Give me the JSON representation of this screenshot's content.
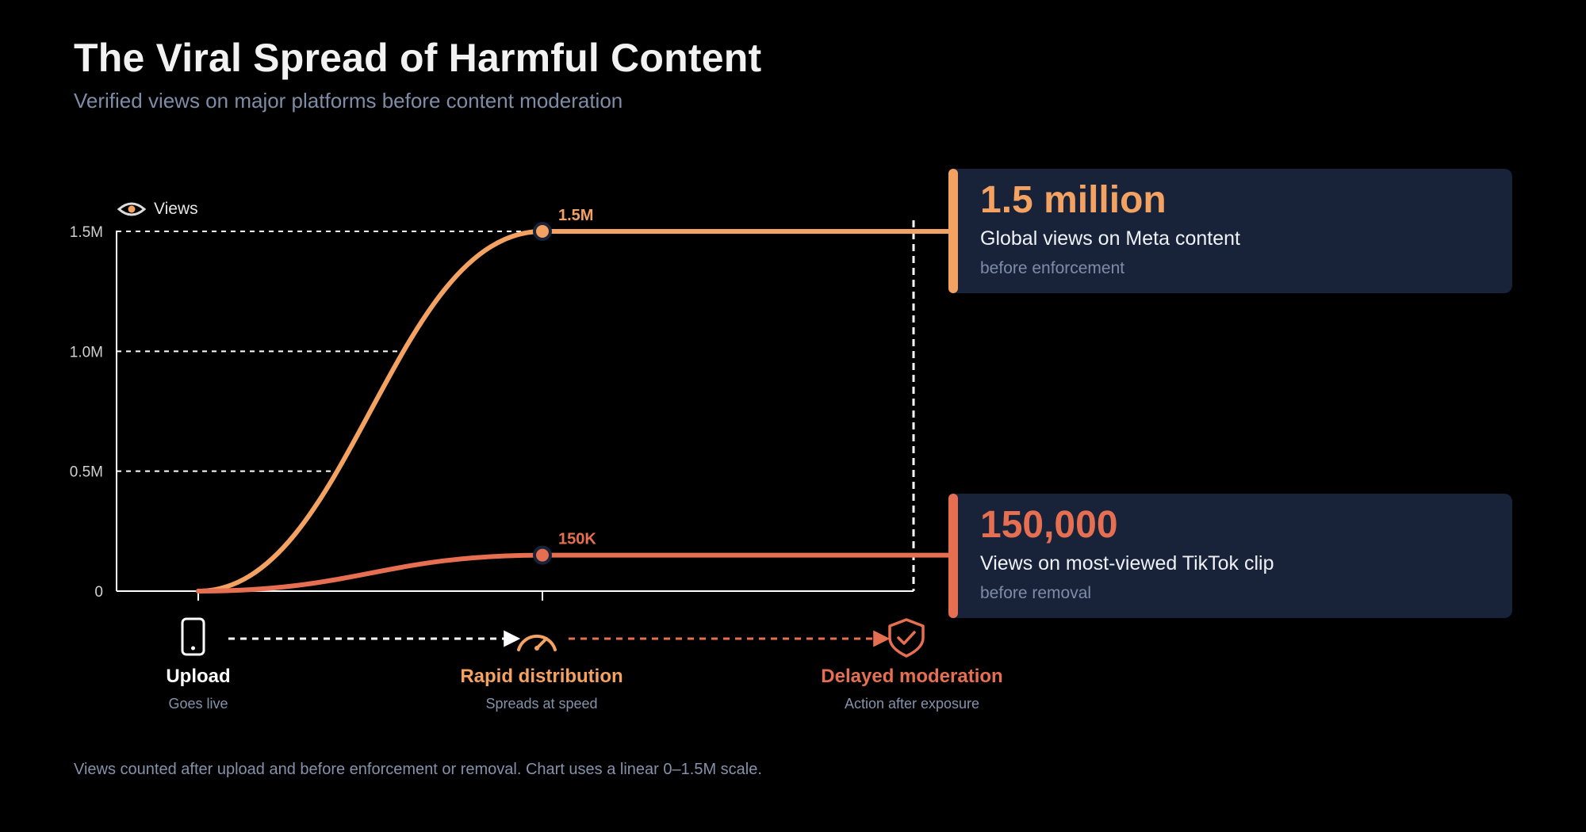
{
  "header": {
    "title": "The Viral Spread of Harmful Content",
    "subtitle": "Verified views on major platforms before content moderation"
  },
  "footnote": "Views counted after upload and before enforcement or removal. Chart uses a linear 0–1.5M scale.",
  "colors": {
    "meta": "#f4a261",
    "tiktok": "#e76f51",
    "card_bg": "#18233a",
    "muted": "#7f8ca5"
  },
  "chart_data": {
    "type": "line",
    "ylabel": "Views",
    "ylabel_icon": "eye-icon",
    "ylim": [
      0,
      1500000
    ],
    "yticks": [
      {
        "value": 0,
        "label": "0"
      },
      {
        "value": 500000,
        "label": "0.5M"
      },
      {
        "value": 1000000,
        "label": "1.0M"
      },
      {
        "value": 1500000,
        "label": "1.5M"
      }
    ],
    "stages": [
      "Upload",
      "Rapid distribution",
      "Delayed moderation"
    ],
    "series": [
      {
        "key": "meta",
        "color": "#f4a261",
        "values": [
          0,
          1500000,
          1500000
        ],
        "peak_label": "1.5M"
      },
      {
        "key": "tiktok",
        "color": "#e76f51",
        "values": [
          0,
          150000,
          150000
        ],
        "peak_label": "150K"
      }
    ],
    "grid": "dashed horizontal",
    "legend": "none"
  },
  "cards": {
    "meta": {
      "big": "1.5 million",
      "desc": "Global views on Meta content",
      "note": "before enforcement"
    },
    "tiktok": {
      "big": "150,000",
      "desc": "Views on most-viewed TikTok clip",
      "note": "before removal"
    }
  },
  "timeline": [
    {
      "label": "Upload",
      "sub": "Goes live",
      "icon": "phone-icon",
      "color": "#ffffff"
    },
    {
      "label": "Rapid distribution",
      "sub": "Spreads at speed",
      "icon": "speedometer-icon",
      "color": "#f4a261"
    },
    {
      "label": "Delayed moderation",
      "sub": "Action after exposure",
      "icon": "shield-check-icon",
      "color": "#e76f51"
    }
  ]
}
